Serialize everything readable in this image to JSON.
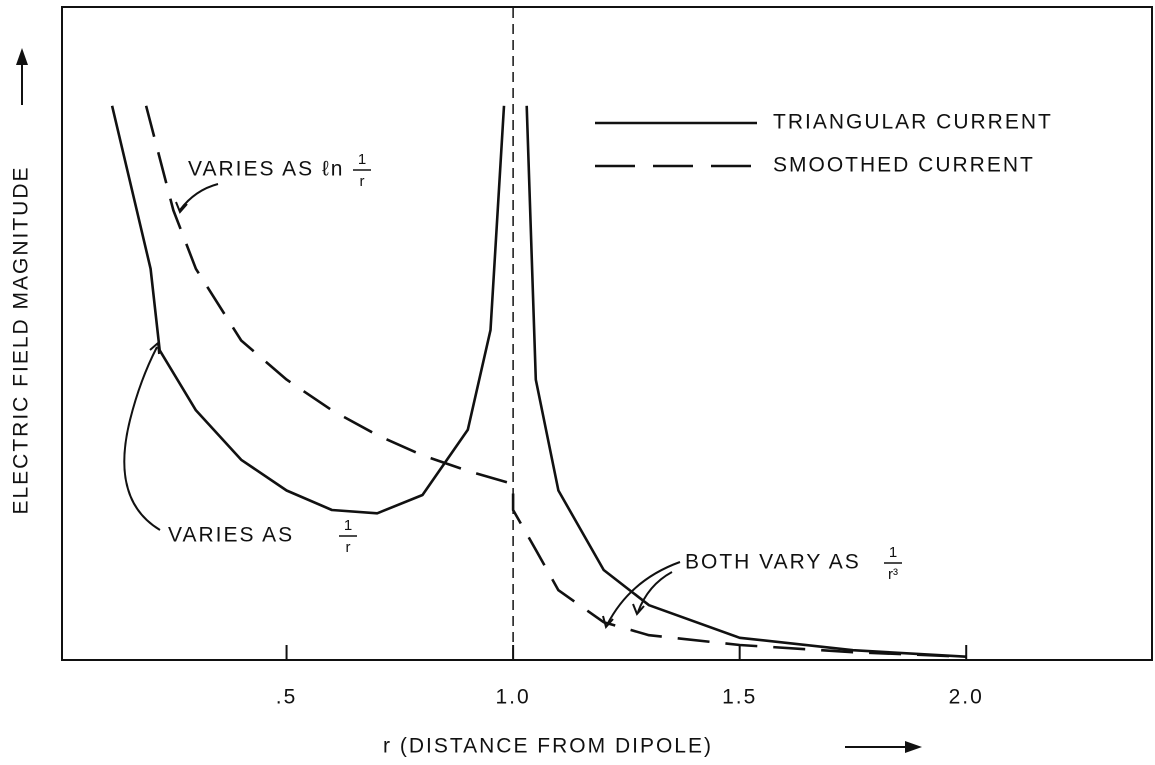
{
  "chart_data": {
    "type": "line",
    "xlabel": "r (DISTANCE FROM DIPOLE)",
    "ylabel": "ELECTRIC FIELD MAGNITUDE",
    "xlim": [
      0,
      2.41
    ],
    "ylim": [
      0,
      10
    ],
    "xticks": [
      {
        "value": 0.5,
        "label": ".5"
      },
      {
        "value": 1,
        "label": "1.0"
      },
      1.5,
      {
        "value": 2,
        "label": "2.0"
      }
    ],
    "grid": false,
    "legend": "upper right",
    "vline": 1,
    "series": [
      {
        "name": "TRIANGULAR CURRENT",
        "color": "#111111",
        "linestyle": "solid",
        "x": [
          0.115,
          0.2,
          0.22,
          0.3,
          0.4,
          0.5,
          0.6,
          0.7,
          0.8,
          0.9,
          0.95,
          0.98,
          1.0,
          1.03,
          1.05,
          1.1,
          1.2,
          1.3,
          1.5,
          1.75,
          2.0
        ],
        "values": [
          8.5,
          6.0,
          4.75,
          3.83,
          3.07,
          2.6,
          2.3,
          2.25,
          2.53,
          3.53,
          5.06,
          8.5,
          null,
          8.5,
          4.3,
          2.6,
          1.38,
          0.84,
          0.34,
          0.15,
          0.05
        ]
      },
      {
        "name": "SMOOTHED CURRENT",
        "color": "#111111",
        "linestyle": "dashed",
        "x": [
          0.19,
          0.25,
          0.3,
          0.4,
          0.5,
          0.6,
          0.7,
          0.8,
          0.9,
          1.0,
          1.0,
          1.05,
          1.1,
          1.2,
          1.3,
          1.5,
          1.75,
          2.0
        ],
        "values": [
          8.5,
          6.9,
          6.0,
          4.9,
          4.3,
          3.83,
          3.45,
          3.14,
          2.9,
          2.7,
          2.3,
          1.69,
          1.07,
          0.58,
          0.38,
          0.23,
          0.12,
          0.05
        ]
      }
    ],
    "annotations": [
      {
        "text": "VARIES AS ℓn",
        "num": "1",
        "den": "r"
      },
      {
        "text": "VARIES AS",
        "num": "1",
        "den": "r"
      },
      {
        "text": "BOTH VARY AS",
        "num": "1",
        "den": "r³"
      }
    ]
  }
}
